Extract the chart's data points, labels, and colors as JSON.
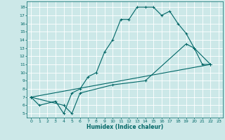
{
  "xlabel": "Humidex (Indice chaleur)",
  "bg_color": "#cce8e8",
  "line_color": "#006666",
  "grid_color": "#ffffff",
  "xlim": [
    -0.5,
    23.5
  ],
  "ylim": [
    4.5,
    18.7
  ],
  "xticks": [
    0,
    1,
    2,
    3,
    4,
    5,
    6,
    7,
    8,
    9,
    10,
    11,
    12,
    13,
    14,
    15,
    16,
    17,
    18,
    19,
    20,
    21,
    22,
    23
  ],
  "yticks": [
    5,
    6,
    7,
    8,
    9,
    10,
    11,
    12,
    13,
    14,
    15,
    16,
    17,
    18
  ],
  "line1_x": [
    0,
    1,
    3,
    4,
    5,
    6,
    7,
    8,
    9,
    10,
    11,
    12,
    13,
    14,
    15,
    16,
    17,
    18,
    19,
    20,
    21,
    22
  ],
  "line1_y": [
    7,
    6,
    6.5,
    5,
    7.5,
    8,
    9.5,
    10,
    12.5,
    14,
    16.5,
    16.5,
    18,
    18,
    18,
    17,
    17.5,
    16,
    14.8,
    13,
    11,
    11
  ],
  "line2_x": [
    0,
    4,
    5,
    6,
    10,
    14,
    19,
    20,
    22
  ],
  "line2_y": [
    7,
    6,
    5,
    7.5,
    8.5,
    9,
    13.5,
    13,
    11
  ],
  "line3_x": [
    0,
    22
  ],
  "line3_y": [
    7,
    11
  ]
}
